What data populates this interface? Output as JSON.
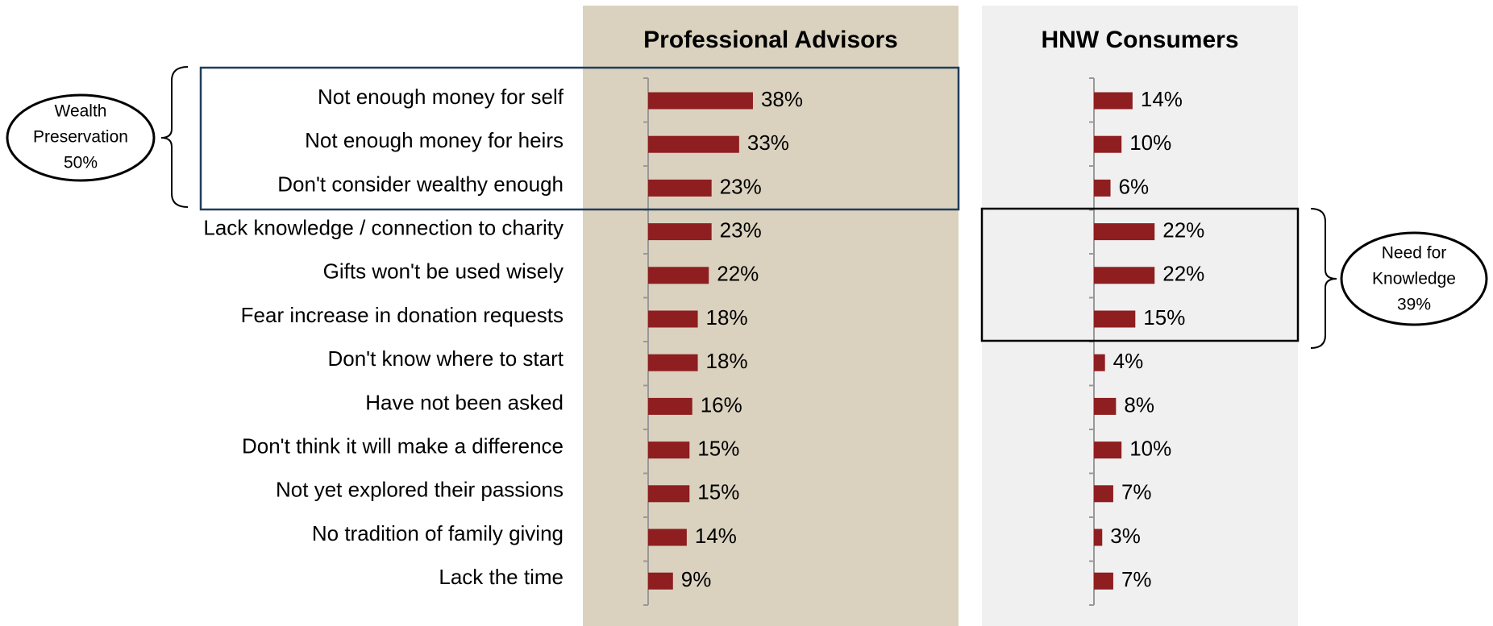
{
  "chart_data": [
    {
      "type": "bar",
      "title": "Professional Advisors",
      "categories": [
        "Not enough money for self",
        "Not enough money for heirs",
        "Don't consider wealthy enough",
        "Lack knowledge / connection to charity",
        "Gifts won't be used wisely",
        "Fear increase in donation requests",
        "Don't know where to start",
        "Have not been asked",
        "Don't think it will make a difference",
        "Not yet explored their passions",
        "No tradition of family giving",
        "Lack the time"
      ],
      "values": [
        38,
        33,
        23,
        23,
        22,
        18,
        18,
        16,
        15,
        15,
        14,
        9
      ],
      "value_labels": [
        "38%",
        "33%",
        "23%",
        "23%",
        "22%",
        "18%",
        "18%",
        "16%",
        "15%",
        "15%",
        "14%",
        "9%"
      ],
      "color": "#8e1e20",
      "background": "#dad2bf",
      "xlim": [
        0,
        100
      ],
      "annotation": {
        "lines": [
          "Wealth",
          "Preservation",
          "50%"
        ],
        "color": "#1f3d5c"
      }
    },
    {
      "type": "bar",
      "title": "HNW Consumers",
      "values": [
        14,
        10,
        6,
        22,
        22,
        15,
        4,
        8,
        10,
        7,
        3,
        7
      ],
      "value_labels": [
        "14%",
        "10%",
        "6%",
        "22%",
        "22%",
        "15%",
        "4%",
        "8%",
        "10%",
        "7%",
        "3%",
        "7%"
      ],
      "color": "#8e1e20",
      "background": "#f0f0f0",
      "xlim": [
        0,
        100
      ],
      "annotation": {
        "lines": [
          "Need for",
          "Knowledge",
          "39%"
        ],
        "color": "#000000"
      }
    }
  ]
}
